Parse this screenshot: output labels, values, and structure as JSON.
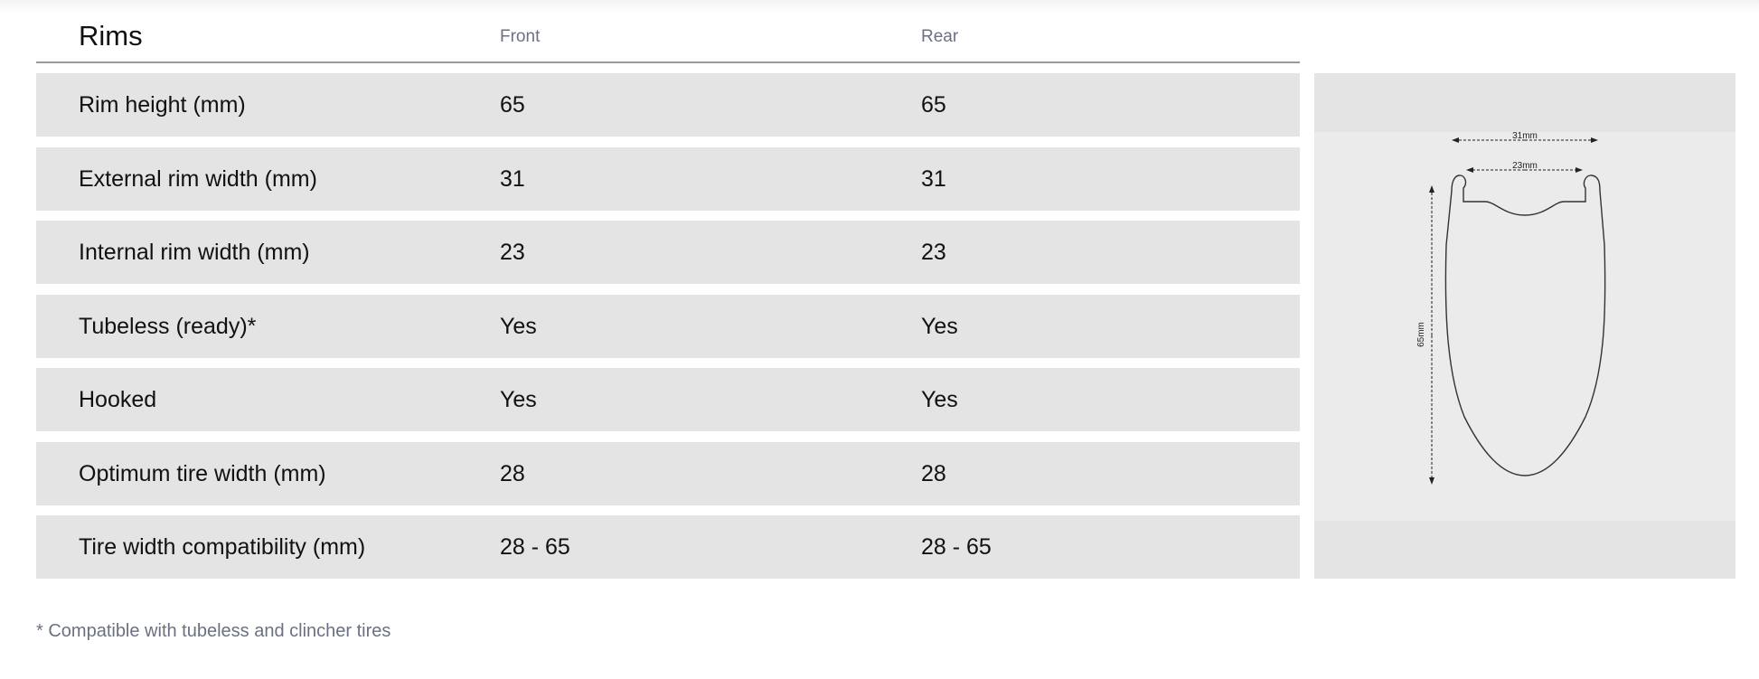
{
  "section": {
    "title": "Rims"
  },
  "columns": {
    "front": "Front",
    "rear": "Rear"
  },
  "rows": [
    {
      "label": "Rim height (mm)",
      "front": "65",
      "rear": "65"
    },
    {
      "label": "External rim width (mm)",
      "front": "31",
      "rear": "31"
    },
    {
      "label": "Internal rim width (mm)",
      "front": "23",
      "rear": "23"
    },
    {
      "label": "Tubeless (ready)*",
      "front": "Yes",
      "rear": "Yes"
    },
    {
      "label": "Hooked",
      "front": "Yes",
      "rear": "Yes"
    },
    {
      "label": "Optimum tire width (mm)",
      "front": "28",
      "rear": "28"
    },
    {
      "label": "Tire width compatibility (mm)",
      "front": "28 - 65",
      "rear": "28 - 65"
    }
  ],
  "diagram": {
    "external_width": "31mm",
    "internal_width": "23mm",
    "height": "65mm"
  },
  "footnote": "* Compatible with tubeless and clincher tires"
}
